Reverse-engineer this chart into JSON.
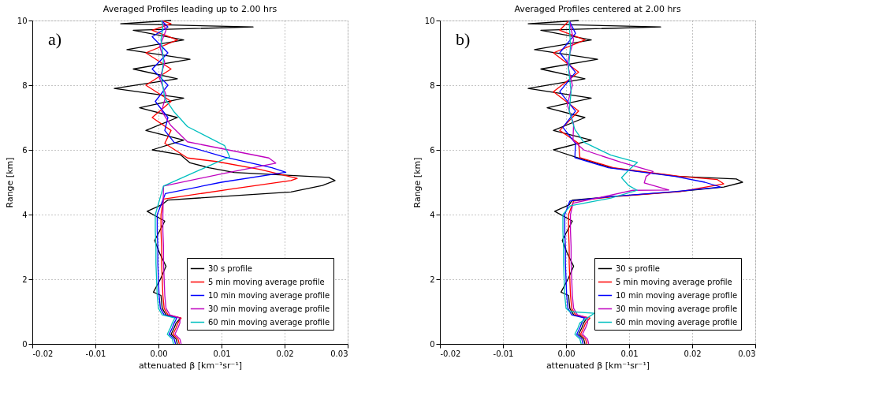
{
  "chart_data": [
    {
      "type": "line",
      "title": "Averaged Profiles leading up to 2.00 hrs",
      "xlabel": "attenuated β [km⁻¹sr⁻¹]",
      "ylabel": "Range [km]",
      "annotations": [
        "a)"
      ],
      "xlim": [
        -0.02,
        0.03
      ],
      "xticks": [
        {
          "value": -0.02,
          "label": "-0.02"
        },
        {
          "value": -0.01,
          "label": "-0.01"
        },
        {
          "value": 0,
          "label": "0.00"
        },
        {
          "value": 0.01,
          "label": "0.01"
        },
        {
          "value": 0.02,
          "label": "0.02"
        },
        {
          "value": 0.03,
          "label": "0.03"
        }
      ],
      "ylim": [
        0,
        10
      ],
      "yticks": [
        0,
        2,
        4,
        6,
        8,
        10
      ],
      "grid": true,
      "legend": "bottom right",
      "line_style": "solid",
      "marker": "none",
      "series": [
        {
          "name": "30 s profile",
          "color": "#000000",
          "x": [
            0.003,
            0.0028,
            0.002,
            0.0025,
            0.0028,
            0.0035,
            0.0012,
            0.0006,
            0.0004,
            -0.0008,
            0.0003,
            0.0012,
            0.0002,
            -0.0006,
            0.0002,
            0.001,
            -0.0018,
            0.0005,
            0.0015,
            0.021,
            0.026,
            0.028,
            0.027,
            0.012,
            0.008,
            0.005,
            0.0035,
            -0.001,
            0.004,
            -0.002,
            0.003,
            -0.003,
            0.004,
            -0.007,
            0.003,
            -0.004,
            0.005,
            -0.005,
            0.004,
            -0.004,
            0.015,
            -0.006,
            0.002
          ],
          "values": [
            0,
            0.15,
            0.3,
            0.5,
            0.65,
            0.8,
            0.9,
            1.1,
            1.5,
            1.6,
            2,
            2.4,
            2.8,
            3.2,
            3.5,
            3.8,
            4.1,
            4.3,
            4.45,
            4.7,
            4.9,
            5.05,
            5.15,
            5.3,
            5.45,
            5.6,
            5.85,
            6.0,
            6.3,
            6.6,
            7.0,
            7.3,
            7.6,
            7.9,
            8.2,
            8.5,
            8.8,
            9.1,
            9.4,
            9.7,
            9.8,
            9.9,
            10
          ]
        },
        {
          "name": "5 min moving average profile",
          "color": "#ff0000",
          "x": [
            0.0033,
            0.0031,
            0.0023,
            0.0028,
            0.0031,
            0.0036,
            0.0015,
            0.0009,
            0.0007,
            0.0006,
            0.0005,
            0.0005,
            0.0004,
            0.0004,
            0.0008,
            0.012,
            0.021,
            0.022,
            0.016,
            0.0092,
            0.0046,
            0.001,
            0.002,
            -0.001,
            0.002,
            -0.002,
            0.002,
            -0.002,
            0.003,
            -0.001,
            0.002,
            0.0005
          ],
          "values": [
            0,
            0.15,
            0.3,
            0.5,
            0.65,
            0.8,
            0.9,
            1.1,
            1.5,
            2,
            2.5,
            3,
            3.5,
            4,
            4.48,
            4.8,
            5.05,
            5.12,
            5.4,
            5.64,
            5.75,
            6.2,
            6.6,
            7.0,
            7.5,
            8.0,
            8.5,
            9.0,
            9.4,
            9.7,
            9.9,
            10
          ]
        },
        {
          "name": "10 min moving average profile",
          "color": "#0000ff",
          "x": [
            0.0027,
            0.0025,
            0.0017,
            0.0022,
            0.0025,
            0.0029,
            0.0009,
            0.0003,
            0.0001,
            0,
            -0.0001,
            -0.0001,
            -0.0002,
            -0.0002,
            0.0011,
            0.01,
            0.0202,
            0.018,
            0.0105,
            0.0025,
            0.001,
            0.0015,
            -0.0005,
            0.0015,
            -0.001,
            0.0015,
            -0.001,
            0.0015,
            0.0005
          ],
          "values": [
            0,
            0.15,
            0.3,
            0.5,
            0.65,
            0.8,
            0.9,
            1.1,
            1.5,
            2,
            2.5,
            3,
            3.5,
            4,
            4.65,
            5.0,
            5.31,
            5.45,
            5.78,
            6.23,
            6.6,
            7.0,
            7.5,
            8.0,
            8.5,
            9.0,
            9.5,
            9.8,
            10
          ]
        },
        {
          "name": "30 min moving average profile",
          "color": "#bf00bf",
          "x": [
            0.0036,
            0.0034,
            0.0026,
            0.0031,
            0.0034,
            0.0034,
            0.0018,
            0.0012,
            0.001,
            0.0009,
            0.0008,
            0.0008,
            0.0007,
            0.0007,
            0.0008,
            0.0105,
            0.0186,
            0.0175,
            0.0046,
            0.0019,
            0.0005,
            0.0012,
            0.0002,
            0.001,
            0.0002,
            0.0012,
            0.0005
          ],
          "values": [
            0,
            0.15,
            0.3,
            0.5,
            0.65,
            0.8,
            0.9,
            1.1,
            1.5,
            2,
            2.5,
            3,
            3.5,
            4,
            4.88,
            5.28,
            5.59,
            5.75,
            6.25,
            6.77,
            7.2,
            7.7,
            8.2,
            8.7,
            9.2,
            9.7,
            10
          ]
        },
        {
          "name": "60 min moving average profile",
          "color": "#00bfbf",
          "x": [
            0.0024,
            0.0022,
            0.0014,
            0.0019,
            0.0022,
            0.0026,
            0.0006,
            0,
            -0.0002,
            -0.0003,
            -0.0004,
            -0.0004,
            -0.0005,
            -0.0005,
            0.0008,
            0.0098,
            0.0113,
            0.0105,
            0.0046,
            0.0025,
            0.001,
            0.0005,
            0.0008,
            0.0004,
            0.0007,
            0.0005
          ],
          "values": [
            0,
            0.15,
            0.3,
            0.5,
            0.65,
            0.8,
            0.9,
            1.1,
            1.5,
            2,
            2.5,
            3,
            3.5,
            4,
            4.88,
            5.66,
            5.78,
            6.13,
            6.72,
            7.17,
            7.6,
            8.2,
            8.8,
            9.4,
            9.8,
            10
          ]
        }
      ]
    },
    {
      "type": "line",
      "title": "Averaged Profiles centered at 2.00 hrs",
      "xlabel": "attenuated β [km⁻¹sr⁻¹]",
      "ylabel": "Range [km]",
      "annotations": [
        "b)"
      ],
      "xlim": [
        -0.02,
        0.03
      ],
      "xticks": [
        {
          "value": -0.02,
          "label": "-0.02"
        },
        {
          "value": -0.01,
          "label": "-0.01"
        },
        {
          "value": 0,
          "label": "0.00"
        },
        {
          "value": 0.01,
          "label": "0.01"
        },
        {
          "value": 0.02,
          "label": "0.02"
        },
        {
          "value": 0.03,
          "label": "0.03"
        }
      ],
      "ylim": [
        0,
        10
      ],
      "yticks": [
        0,
        2,
        4,
        6,
        8,
        10
      ],
      "grid": true,
      "legend": "bottom right",
      "line_style": "solid",
      "marker": "none",
      "series": [
        {
          "name": "30 s profile",
          "color": "#000000",
          "x": [
            0.003,
            0.0028,
            0.002,
            0.0025,
            0.0028,
            0.0033,
            0.0012,
            0.0006,
            0.0004,
            -0.0008,
            0.0003,
            0.0012,
            0.0002,
            -0.0006,
            0.0002,
            0.001,
            -0.0018,
            0.0005,
            0.001,
            0.0071,
            0.0177,
            0.025,
            0.028,
            0.027,
            0.0177,
            0.0071,
            0.0018,
            -0.002,
            0.004,
            -0.002,
            0.003,
            -0.003,
            0.004,
            -0.006,
            0.003,
            -0.004,
            0.005,
            -0.005,
            0.004,
            -0.004,
            0.015,
            -0.006,
            0.002
          ],
          "values": [
            0,
            0.15,
            0.3,
            0.5,
            0.65,
            0.8,
            0.9,
            1.1,
            1.5,
            1.6,
            2,
            2.4,
            2.8,
            3.2,
            3.5,
            3.8,
            4.1,
            4.3,
            4.45,
            4.55,
            4.71,
            4.85,
            5.0,
            5.1,
            5.18,
            5.45,
            5.76,
            6.0,
            6.3,
            6.6,
            7.0,
            7.3,
            7.6,
            7.9,
            8.2,
            8.5,
            8.8,
            9.1,
            9.4,
            9.7,
            9.8,
            9.9,
            10
          ]
        },
        {
          "name": "5 min moving average profile",
          "color": "#ff0000",
          "x": [
            0.0033,
            0.0031,
            0.0023,
            0.0028,
            0.0031,
            0.0038,
            0.0015,
            0.0009,
            0.0007,
            0.0006,
            0.0005,
            0.0005,
            0.0004,
            0.0004,
            0.0012,
            0.0075,
            0.0181,
            0.025,
            0.024,
            0.0181,
            0.0075,
            0.0022,
            0.002,
            -0.001,
            0.002,
            -0.002,
            0.002,
            -0.002,
            0.003,
            -0.001,
            0.0005
          ],
          "values": [
            0,
            0.15,
            0.3,
            0.5,
            0.65,
            0.8,
            0.9,
            1.1,
            1.5,
            2,
            2.5,
            3,
            3.5,
            4,
            4.42,
            4.55,
            4.71,
            4.95,
            5.08,
            5.18,
            5.45,
            5.76,
            6.2,
            6.6,
            7.2,
            7.8,
            8.4,
            9.0,
            9.4,
            9.7,
            10
          ]
        },
        {
          "name": "10 min moving average profile",
          "color": "#0000ff",
          "x": [
            0.0027,
            0.0025,
            0.0017,
            0.0022,
            0.0025,
            0.0029,
            0.0009,
            0.0003,
            0.0001,
            0,
            -0.0001,
            -0.0001,
            -0.0002,
            -0.0002,
            0.0006,
            0.0067,
            0.0173,
            0.0245,
            0.022,
            0.0173,
            0.0067,
            0.0014,
            0.0015,
            -0.0005,
            0.0015,
            -0.001,
            0.0015,
            -0.001,
            0.0015,
            0.0005
          ],
          "values": [
            0,
            0.15,
            0.3,
            0.5,
            0.65,
            0.8,
            0.9,
            1.1,
            1.5,
            2,
            2.5,
            3,
            3.5,
            4,
            4.42,
            4.55,
            4.71,
            4.85,
            5.0,
            5.18,
            5.45,
            5.76,
            6.2,
            6.7,
            7.2,
            7.8,
            8.4,
            9.0,
            9.6,
            10
          ]
        },
        {
          "name": "30 min moving average profile",
          "color": "#bf00bf",
          "x": [
            0.0036,
            0.0034,
            0.0026,
            0.0031,
            0.0034,
            0.0034,
            0.0018,
            0.0012,
            0.001,
            0.0009,
            0.0008,
            0.0008,
            0.0007,
            0.0007,
            0.0011,
            0.0106,
            0.0163,
            0.0124,
            0.0127,
            0.0138,
            0.0088,
            0.0028,
            0.0011,
            0.0012,
            0.0002,
            0.001,
            0.0002,
            0.0012,
            0.0005
          ],
          "values": [
            0,
            0.15,
            0.3,
            0.5,
            0.65,
            0.8,
            0.9,
            1.1,
            1.5,
            2,
            2.5,
            3,
            3.5,
            4,
            4.35,
            4.75,
            4.76,
            4.98,
            5.18,
            5.33,
            5.61,
            6.0,
            6.3,
            6.8,
            7.4,
            8.0,
            8.7,
            9.4,
            10
          ]
        },
        {
          "name": "60 min moving average profile",
          "color": "#00bfbf",
          "x": [
            0.0024,
            0.0022,
            0.0014,
            0.0019,
            0.0022,
            0.0045,
            0.0006,
            0,
            -0.0002,
            -0.0003,
            -0.0004,
            -0.0004,
            -0.0005,
            -0.0005,
            0.0007,
            0.0071,
            0.0113,
            0.0099,
            0.0088,
            0.0099,
            0.0113,
            0.0071,
            0.0028,
            0.0014,
            0.0005,
            0.0008,
            0.0004,
            0.0007,
            0.0005
          ],
          "values": [
            0,
            0.15,
            0.3,
            0.5,
            0.65,
            0.95,
            1.0,
            1.1,
            1.5,
            2,
            2.5,
            3,
            3.5,
            4,
            4.27,
            4.51,
            4.75,
            4.9,
            5.14,
            5.37,
            5.61,
            5.84,
            6.24,
            6.63,
            7.2,
            7.8,
            8.5,
            9.2,
            10
          ]
        }
      ]
    }
  ]
}
